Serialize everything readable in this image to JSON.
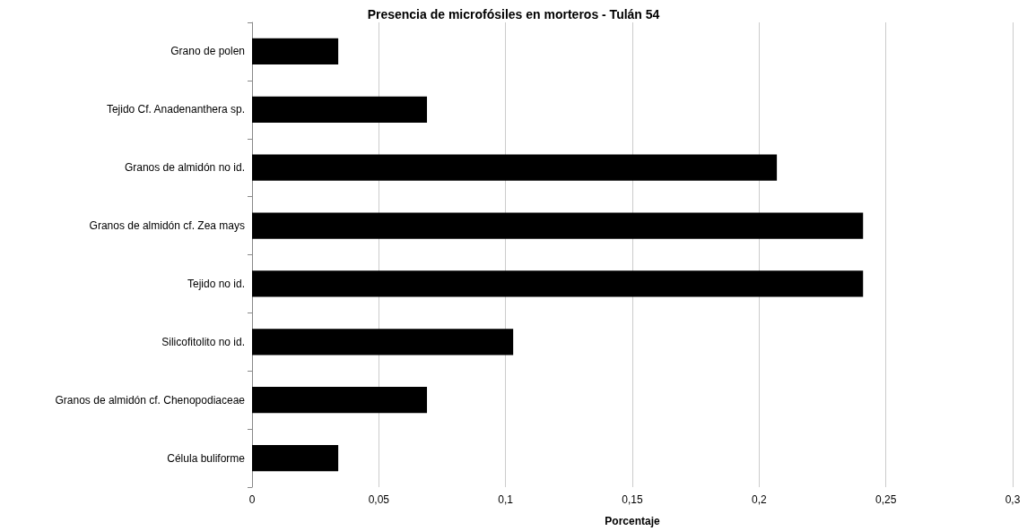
{
  "chart_data": {
    "type": "bar",
    "orientation": "horizontal",
    "title": "Presencia de microfósiles en morteros - Tulán 54",
    "xlabel": "Porcentaje",
    "categories": [
      "Grano de polen",
      "Tejido Cf. Anadenanthera sp.",
      "Granos de almidón no id.",
      "Granos de almidón cf. Zea mays",
      "Tejido no id.",
      "Silicofitolito no id.",
      "Granos de almidón cf. Chenopodiaceae",
      "Célula buliforme"
    ],
    "values": [
      0.034,
      0.069,
      0.207,
      0.241,
      0.241,
      0.103,
      0.069,
      0.034
    ],
    "color": "#000000",
    "xlim": [
      0,
      0.3
    ],
    "xticks": [
      0,
      {
        "value": 0.05,
        "label": "0,05"
      },
      {
        "value": 0.1,
        "label": "0,1"
      },
      {
        "value": 0.15,
        "label": "0,15"
      },
      {
        "value": 0.2,
        "label": "0,2"
      },
      {
        "value": 0.25,
        "label": "0,25"
      },
      {
        "value": 0.3,
        "label": "0,3"
      }
    ],
    "grid": "x"
  }
}
